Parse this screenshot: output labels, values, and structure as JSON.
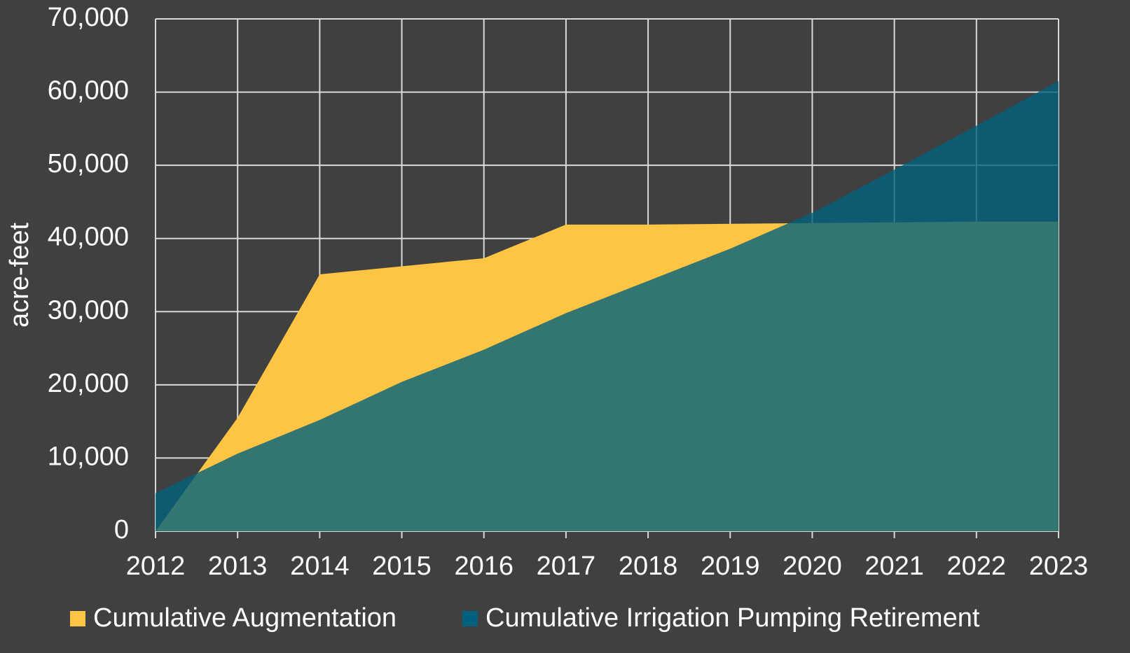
{
  "chart_data": {
    "type": "area",
    "y_label": "acre-feet",
    "x": [
      2012,
      2013,
      2014,
      2015,
      2016,
      2017,
      2018,
      2019,
      2020,
      2021,
      2022,
      2023
    ],
    "xlim": [
      2012,
      2023
    ],
    "xticks": [
      2012,
      2013,
      2014,
      2015,
      2016,
      2017,
      2018,
      2019,
      2020,
      2021,
      2022,
      2023
    ],
    "ylim": [
      0,
      70000
    ],
    "yticks": [
      0,
      {
        "value": 10000,
        "label": "10,000"
      },
      {
        "value": 20000,
        "label": "20,000"
      },
      {
        "value": 30000,
        "label": "30,000"
      },
      {
        "value": 40000,
        "label": "40,000"
      },
      {
        "value": 50000,
        "label": "50,000"
      },
      {
        "value": 60000,
        "label": "60,000"
      },
      {
        "value": 70000,
        "label": "70,000"
      }
    ],
    "grid": true,
    "legend": "bottom",
    "series": [
      {
        "name": "Cumulative Augmentation",
        "color": "#fdc543",
        "values": [
          0,
          15500,
          35100,
          36200,
          37300,
          41900,
          41900,
          42000,
          42100,
          42200,
          42300,
          42300
        ]
      },
      {
        "name": "Cumulative Irrigation Pumping Retirement",
        "color": "#00607d",
        "values": [
          5200,
          10600,
          15200,
          20400,
          24800,
          29800,
          34200,
          38600,
          43500,
          49400,
          55400,
          61500
        ]
      }
    ]
  }
}
